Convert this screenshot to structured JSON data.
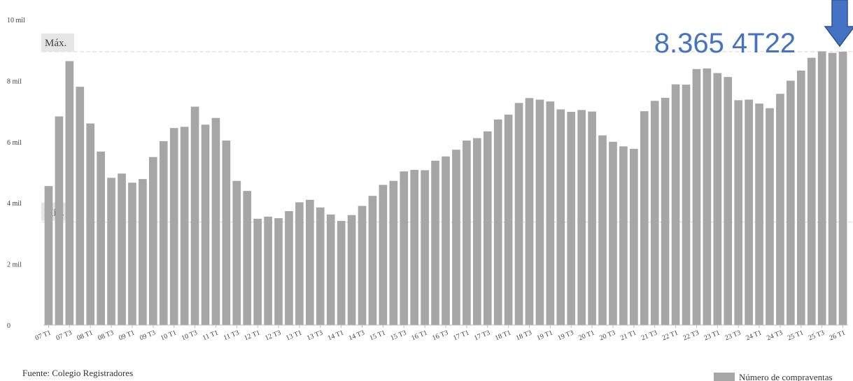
{
  "chart_data": {
    "type": "bar",
    "categories": [
      "07 T1",
      "07 T2",
      "07 T3",
      "07 T4",
      "08 T1",
      "08 T2",
      "08 T3",
      "08 T4",
      "09 T1",
      "09 T2",
      "09 T3",
      "09 T4",
      "10 T1",
      "10 T2",
      "10 T3",
      "10 T4",
      "11 T1",
      "11 T2",
      "11 T3",
      "11 T4",
      "12 T1",
      "12 T2",
      "12 T3",
      "12 T4",
      "13 T1",
      "13 T2",
      "13 T3",
      "13 T4",
      "14 T1",
      "14 T2",
      "14 T3",
      "14 T4",
      "15 T1",
      "15 T2",
      "15 T3",
      "15 T4",
      "16 T1",
      "16 T2",
      "16 T3",
      "16 T4",
      "17 T1",
      "17 T2",
      "17 T3",
      "17 T4",
      "18 T1",
      "18 T2",
      "18 T3",
      "18 T4",
      "19 T1",
      "19 T2",
      "19 T3",
      "19 T4",
      "20 T1",
      "20 T2",
      "20 T3",
      "20 T4",
      "21 T1",
      "21 T2",
      "21 T3",
      "21 T4",
      "22 T1",
      "22 T2",
      "22 T3",
      "22 T4",
      "23 T1",
      "23 T2",
      "23 T3",
      "23 T4",
      "24 T1",
      "24 T2",
      "24 T3",
      "24 T4",
      "25 T1",
      "25 T2",
      "25 T3",
      "25 T4",
      "26 T1"
    ],
    "tick_labels": [
      "07 T1",
      "07 T3",
      "08 T1",
      "08 T3",
      "09 T1",
      "09 T3",
      "10 T1",
      "10 T3",
      "11 T1",
      "11 T3",
      "12 T1",
      "12 T3",
      "13 T1",
      "13 T3",
      "14 T1",
      "14 T3",
      "15 T1",
      "15 T3",
      "16 T1",
      "16 T3",
      "17 T1",
      "17 T3",
      "18 T1",
      "18 T3",
      "19 T1",
      "19 T3",
      "20 T1",
      "20 T3",
      "21 T1",
      "21 T3",
      "22 T1",
      "22 T3",
      "23 T1",
      "23 T3",
      "24 T1",
      "24 T3",
      "25 T1",
      "25 T3",
      "26 T1"
    ],
    "series": [
      {
        "name": "Número de compraventas",
        "values": [
          4550,
          6830,
          8640,
          7800,
          6600,
          5680,
          4820,
          4960,
          4660,
          4780,
          5500,
          6020,
          6450,
          6490,
          7150,
          6560,
          6780,
          6040,
          4720,
          4390,
          3480,
          3550,
          3500,
          3730,
          4020,
          4100,
          3850,
          3620,
          3410,
          3600,
          3900,
          4230,
          4590,
          4720,
          5030,
          5080,
          5070,
          5380,
          5520,
          5740,
          6040,
          6120,
          6340,
          6730,
          6890,
          7270,
          7430,
          7380,
          7320,
          7060,
          6980,
          7040,
          6990,
          6210,
          6000,
          5850,
          5770,
          7000,
          7340,
          7440,
          7880,
          7870,
          8380,
          8400,
          8250,
          8120,
          7360,
          7380,
          7250,
          7100,
          7570,
          8000,
          8330,
          8750,
          8960,
          8910,
          8950
        ]
      }
    ],
    "y_ticks": [
      "0",
      "2 mil",
      "4 mil",
      "6 mil",
      "8 mil",
      "10 mil"
    ],
    "y_tick_values": [
      0,
      2000,
      4000,
      6000,
      8000,
      10000
    ],
    "ylim": [
      0,
      10000
    ],
    "max_line": 8950,
    "min_line": 3370,
    "max_label": "Máx.",
    "min_label": "Mín.",
    "annotation": "8.365 4T22",
    "source": "Fuente: Colegio Registradores",
    "legend_label": "Número de compraventas",
    "grid": false,
    "legend_position": "bottom-right",
    "colors": {
      "bar": "#a6a6a6",
      "annotation": "#4472c4",
      "arrow": "#4472c4",
      "arrow_stroke": "#2f528f",
      "guide_line": "#d9d9d9",
      "label_box": "#e6e6e6",
      "text": "#404040"
    }
  }
}
